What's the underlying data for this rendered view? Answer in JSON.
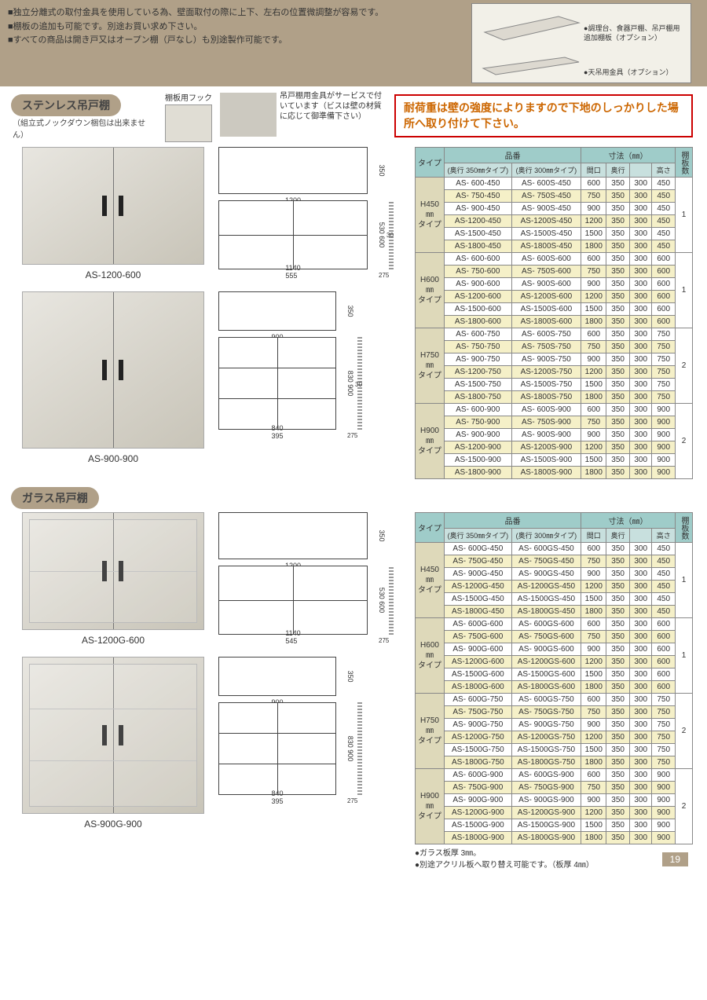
{
  "top_notes": [
    "独立分離式の取付金具を使用している為、壁面取付の際に上下、左右の位置微調整が容易です。",
    "棚板の追加も可能です。別途お買い求め下さい。",
    "すべての商品は開き戸又はオープン棚（戸なし）も別途製作可能です。"
  ],
  "top_option1": "調理台、食器戸棚、吊戸棚用追加棚板（オプション）",
  "top_option2": "天吊用金具（オプション）",
  "section1": {
    "title": "ステンレス吊戸棚",
    "subtitle": "（組立式ノックダウン梱包は出来ません）",
    "hook_label": "棚板用フック",
    "service_text": "吊戸棚用金具がサービスで付いています（ビスは壁の材質に応じて御準備下さい）",
    "warning": "耐荷重は壁の強度によりますので下地のしっかりした場所へ取り付けて下さい。",
    "products": [
      {
        "caption": "AS-1200-600",
        "top_w": "1200",
        "top_h": "350",
        "front_w": "1140",
        "front_w2": "555",
        "front_h": "600",
        "front_h2": "530",
        "side_h": "30",
        "side_w": "275"
      },
      {
        "caption": "AS-900-900",
        "top_w": "900",
        "top_h": "350",
        "front_w": "840",
        "front_w2": "395",
        "front_h": "900",
        "front_h2": "830",
        "side_h": "30",
        "side_w": "275"
      }
    ]
  },
  "section2": {
    "title": "ガラス吊戸棚",
    "products": [
      {
        "caption": "AS-1200G-600",
        "top_w": "1200",
        "top_h": "350",
        "front_w": "1140",
        "front_w2": "545",
        "front_h": "600",
        "front_h2": "530",
        "side_w": "275"
      },
      {
        "caption": "AS-900G-900",
        "top_w": "900",
        "top_h": "350",
        "front_w": "840",
        "front_w2": "395",
        "front_h": "900",
        "front_h2": "830",
        "side_w": "275"
      }
    ],
    "footnotes": [
      "ガラス板厚 3㎜。",
      "別途アクリル板へ取り替え可能です。（板厚 4㎜）"
    ]
  },
  "table_headers": {
    "type": "タイプ",
    "part": "品番",
    "part350": "(奥行 350㎜タイプ)",
    "part300": "(奥行 300㎜タイプ)",
    "dims": "寸法（㎜）",
    "w": "間口",
    "d": "奥行",
    "h": "高さ",
    "shelves": "棚板数"
  },
  "groups1": [
    {
      "type": "H450㎜タイプ",
      "shelves": "1",
      "rows": [
        [
          "AS- 600-450",
          "AS- 600S-450",
          "600",
          "350",
          "300",
          "450",
          false
        ],
        [
          "AS- 750-450",
          "AS- 750S-450",
          "750",
          "350",
          "300",
          "450",
          true
        ],
        [
          "AS- 900-450",
          "AS- 900S-450",
          "900",
          "350",
          "300",
          "450",
          false
        ],
        [
          "AS-1200-450",
          "AS-1200S-450",
          "1200",
          "350",
          "300",
          "450",
          true
        ],
        [
          "AS-1500-450",
          "AS-1500S-450",
          "1500",
          "350",
          "300",
          "450",
          false
        ],
        [
          "AS-1800-450",
          "AS-1800S-450",
          "1800",
          "350",
          "300",
          "450",
          true
        ]
      ]
    },
    {
      "type": "H600㎜タイプ",
      "shelves": "1",
      "rows": [
        [
          "AS- 600-600",
          "AS- 600S-600",
          "600",
          "350",
          "300",
          "600",
          false
        ],
        [
          "AS- 750-600",
          "AS- 750S-600",
          "750",
          "350",
          "300",
          "600",
          true
        ],
        [
          "AS- 900-600",
          "AS- 900S-600",
          "900",
          "350",
          "300",
          "600",
          false
        ],
        [
          "AS-1200-600",
          "AS-1200S-600",
          "1200",
          "350",
          "300",
          "600",
          true
        ],
        [
          "AS-1500-600",
          "AS-1500S-600",
          "1500",
          "350",
          "300",
          "600",
          false
        ],
        [
          "AS-1800-600",
          "AS-1800S-600",
          "1800",
          "350",
          "300",
          "600",
          true
        ]
      ]
    },
    {
      "type": "H750㎜タイプ",
      "shelves": "2",
      "rows": [
        [
          "AS- 600-750",
          "AS- 600S-750",
          "600",
          "350",
          "300",
          "750",
          false
        ],
        [
          "AS- 750-750",
          "AS- 750S-750",
          "750",
          "350",
          "300",
          "750",
          true
        ],
        [
          "AS- 900-750",
          "AS- 900S-750",
          "900",
          "350",
          "300",
          "750",
          false
        ],
        [
          "AS-1200-750",
          "AS-1200S-750",
          "1200",
          "350",
          "300",
          "750",
          true
        ],
        [
          "AS-1500-750",
          "AS-1500S-750",
          "1500",
          "350",
          "300",
          "750",
          false
        ],
        [
          "AS-1800-750",
          "AS-1800S-750",
          "1800",
          "350",
          "300",
          "750",
          true
        ]
      ]
    },
    {
      "type": "H900㎜タイプ",
      "shelves": "2",
      "rows": [
        [
          "AS- 600-900",
          "AS- 600S-900",
          "600",
          "350",
          "300",
          "900",
          false
        ],
        [
          "AS- 750-900",
          "AS- 750S-900",
          "750",
          "350",
          "300",
          "900",
          true
        ],
        [
          "AS- 900-900",
          "AS- 900S-900",
          "900",
          "350",
          "300",
          "900",
          false
        ],
        [
          "AS-1200-900",
          "AS-1200S-900",
          "1200",
          "350",
          "300",
          "900",
          true
        ],
        [
          "AS-1500-900",
          "AS-1500S-900",
          "1500",
          "350",
          "300",
          "900",
          false
        ],
        [
          "AS-1800-900",
          "AS-1800S-900",
          "1800",
          "350",
          "300",
          "900",
          true
        ]
      ]
    }
  ],
  "groups2": [
    {
      "type": "H450㎜タイプ",
      "shelves": "1",
      "rows": [
        [
          "AS- 600G-450",
          "AS- 600GS-450",
          "600",
          "350",
          "300",
          "450",
          false
        ],
        [
          "AS- 750G-450",
          "AS- 750GS-450",
          "750",
          "350",
          "300",
          "450",
          true
        ],
        [
          "AS- 900G-450",
          "AS- 900GS-450",
          "900",
          "350",
          "300",
          "450",
          false
        ],
        [
          "AS-1200G-450",
          "AS-1200GS-450",
          "1200",
          "350",
          "300",
          "450",
          true
        ],
        [
          "AS-1500G-450",
          "AS-1500GS-450",
          "1500",
          "350",
          "300",
          "450",
          false
        ],
        [
          "AS-1800G-450",
          "AS-1800GS-450",
          "1800",
          "350",
          "300",
          "450",
          true
        ]
      ]
    },
    {
      "type": "H600㎜タイプ",
      "shelves": "1",
      "rows": [
        [
          "AS- 600G-600",
          "AS- 600GS-600",
          "600",
          "350",
          "300",
          "600",
          false
        ],
        [
          "AS- 750G-600",
          "AS- 750GS-600",
          "750",
          "350",
          "300",
          "600",
          true
        ],
        [
          "AS- 900G-600",
          "AS- 900GS-600",
          "900",
          "350",
          "300",
          "600",
          false
        ],
        [
          "AS-1200G-600",
          "AS-1200GS-600",
          "1200",
          "350",
          "300",
          "600",
          true
        ],
        [
          "AS-1500G-600",
          "AS-1500GS-600",
          "1500",
          "350",
          "300",
          "600",
          false
        ],
        [
          "AS-1800G-600",
          "AS-1800GS-600",
          "1800",
          "350",
          "300",
          "600",
          true
        ]
      ]
    },
    {
      "type": "H750㎜タイプ",
      "shelves": "2",
      "rows": [
        [
          "AS- 600G-750",
          "AS- 600GS-750",
          "600",
          "350",
          "300",
          "750",
          false
        ],
        [
          "AS- 750G-750",
          "AS- 750GS-750",
          "750",
          "350",
          "300",
          "750",
          true
        ],
        [
          "AS- 900G-750",
          "AS- 900GS-750",
          "900",
          "350",
          "300",
          "750",
          false
        ],
        [
          "AS-1200G-750",
          "AS-1200GS-750",
          "1200",
          "350",
          "300",
          "750",
          true
        ],
        [
          "AS-1500G-750",
          "AS-1500GS-750",
          "1500",
          "350",
          "300",
          "750",
          false
        ],
        [
          "AS-1800G-750",
          "AS-1800GS-750",
          "1800",
          "350",
          "300",
          "750",
          true
        ]
      ]
    },
    {
      "type": "H900㎜タイプ",
      "shelves": "2",
      "rows": [
        [
          "AS- 600G-900",
          "AS- 600GS-900",
          "600",
          "350",
          "300",
          "900",
          false
        ],
        [
          "AS- 750G-900",
          "AS- 750GS-900",
          "750",
          "350",
          "300",
          "900",
          true
        ],
        [
          "AS- 900G-900",
          "AS- 900GS-900",
          "900",
          "350",
          "300",
          "900",
          false
        ],
        [
          "AS-1200G-900",
          "AS-1200GS-900",
          "1200",
          "350",
          "300",
          "900",
          true
        ],
        [
          "AS-1500G-900",
          "AS-1500GS-900",
          "1500",
          "350",
          "300",
          "900",
          false
        ],
        [
          "AS-1800G-900",
          "AS-1800GS-900",
          "1800",
          "350",
          "300",
          "900",
          true
        ]
      ]
    }
  ],
  "page_number": "19"
}
